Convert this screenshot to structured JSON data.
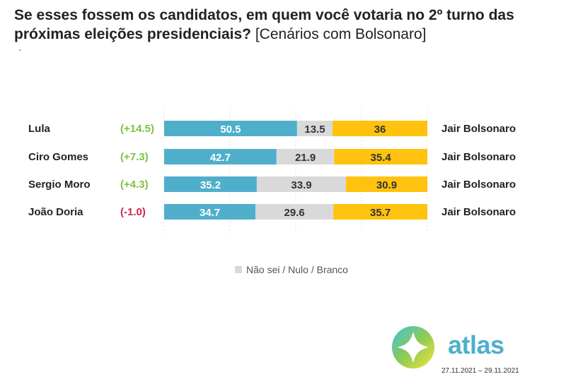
{
  "title": {
    "bold": "Se esses fossem os candidatos, em quem você votaria no 2º turno das próximas eleições presidenciais?",
    "normal": "[Cenários com Bolsonaro]"
  },
  "colors": {
    "candidate": "#4FAFCB",
    "undecided": "#D9D9D9",
    "bolsonaro": "#FFC20E",
    "positive_diff": "#7DC242",
    "negative_diff": "#D4244A",
    "grid": "#DDDDDD"
  },
  "chart_data": {
    "type": "bar",
    "orientation": "horizontal",
    "stacked": true,
    "categories": [
      "Lula",
      "Ciro Gomes",
      "Sergio Moro",
      "João Doria"
    ],
    "opponent_labels": [
      "Jair Bolsonaro",
      "Jair Bolsonaro",
      "Jair Bolsonaro",
      "Jair Bolsonaro"
    ],
    "differences": [
      "(+14.5)",
      "(+7.3)",
      "(+4.3)",
      "(-1.0)"
    ],
    "series": [
      {
        "values": [
          50.5,
          42.7,
          35.2,
          34.7
        ]
      },
      {
        "name": "Não sei / Nulo / Branco",
        "values": [
          13.5,
          21.9,
          33.9,
          29.6
        ]
      },
      {
        "values": [
          36,
          35.4,
          30.9,
          35.7
        ]
      }
    ],
    "xlim": [
      0,
      100
    ],
    "grid": true,
    "legend": "bottom-center"
  },
  "legend": {
    "label": "Não sei / Nulo / Branco"
  },
  "brand": {
    "name": "atlas",
    "dates": "27.11.2021 – 29.11.2021"
  }
}
